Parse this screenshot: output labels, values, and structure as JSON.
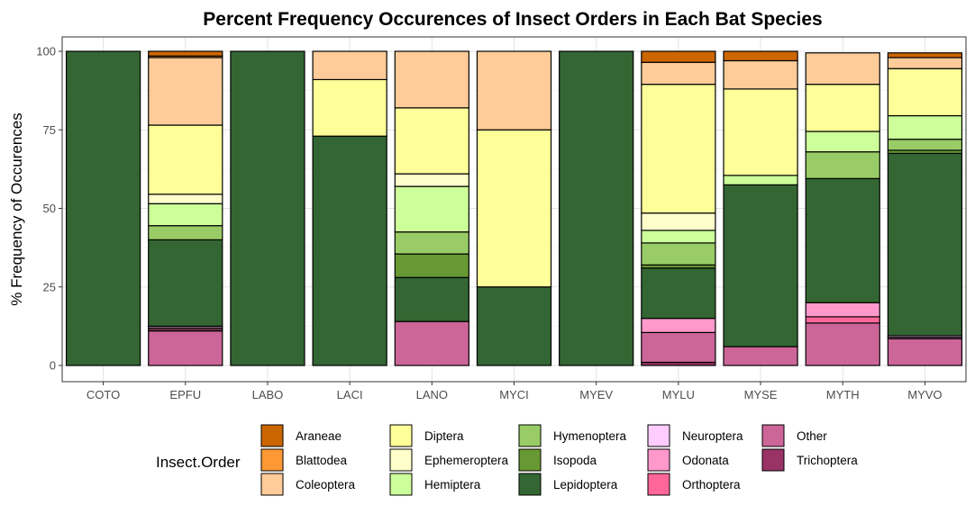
{
  "chart_data": {
    "type": "bar",
    "stacked": true,
    "title": "Percent Frequency Occurences of Insect Orders in Each Bat Species",
    "xlabel": "",
    "ylabel": "% Frequency of Occurences",
    "ylim": [
      0,
      100
    ],
    "yticks": [
      0,
      25,
      50,
      75,
      100
    ],
    "grid": true,
    "legend_position": "bottom",
    "legend_title": "Insect.Order",
    "categories": [
      "COTO",
      "EPFU",
      "LABO",
      "LACI",
      "LANO",
      "MYCI",
      "MYEV",
      "MYLU",
      "MYSE",
      "MYTH",
      "MYVO"
    ],
    "series": [
      {
        "name": "Trichoptera",
        "color": "#993366",
        "values": [
          0,
          0,
          0,
          0,
          0,
          0,
          0,
          1,
          0,
          0,
          0
        ]
      },
      {
        "name": "Other",
        "color": "#cc6699",
        "values": [
          0,
          11,
          0,
          0,
          14,
          0,
          0,
          9.5,
          6,
          13.5,
          8.5
        ]
      },
      {
        "name": "Orthoptera",
        "color": "#ff6699",
        "values": [
          0,
          0.5,
          0,
          0,
          0,
          0,
          0,
          0,
          0,
          2,
          0
        ]
      },
      {
        "name": "Odonata",
        "color": "#ff99cc",
        "values": [
          0,
          0.5,
          0,
          0,
          0,
          0,
          0,
          4.5,
          0,
          4.5,
          0.5
        ]
      },
      {
        "name": "Neuroptera",
        "color": "#ffccff",
        "values": [
          0,
          0.5,
          0,
          0,
          0,
          0,
          0,
          0,
          0,
          0,
          0.5
        ]
      },
      {
        "name": "Lepidoptera",
        "color": "#336633",
        "values": [
          100,
          27.5,
          100,
          73,
          14,
          25,
          100,
          16,
          51.5,
          39.5,
          58
        ]
      },
      {
        "name": "Isopoda",
        "color": "#669933",
        "values": [
          0,
          0,
          0,
          0,
          7.5,
          0,
          0,
          1,
          0,
          0,
          1
        ]
      },
      {
        "name": "Hymenoptera",
        "color": "#99cc66",
        "values": [
          0,
          4.5,
          0,
          0,
          7,
          0,
          0,
          7,
          0,
          8.5,
          3.5
        ]
      },
      {
        "name": "Hemiptera",
        "color": "#ccff99",
        "values": [
          0,
          7,
          0,
          0,
          14.5,
          0,
          0,
          4,
          3,
          6.5,
          7.5
        ]
      },
      {
        "name": "Ephemeroptera",
        "color": "#ffffcc",
        "values": [
          0,
          3,
          0,
          0,
          4,
          0,
          0,
          5.5,
          0,
          0,
          0
        ]
      },
      {
        "name": "Diptera",
        "color": "#ffff99",
        "values": [
          0,
          22,
          0,
          18,
          21,
          50,
          0,
          41,
          27.5,
          15,
          15
        ]
      },
      {
        "name": "Coleoptera",
        "color": "#ffcc99",
        "values": [
          0,
          21.5,
          0,
          9,
          18,
          25,
          0,
          7,
          9,
          10,
          3.5
        ]
      },
      {
        "name": "Blattodea",
        "color": "#ff9933",
        "values": [
          0,
          0.5,
          0,
          0,
          0,
          0,
          0,
          0,
          0,
          0,
          0
        ]
      },
      {
        "name": "Araneae",
        "color": "#cc6600",
        "values": [
          0,
          1.5,
          0,
          0,
          0,
          0,
          0,
          3.5,
          3,
          0,
          1.5
        ]
      }
    ],
    "legend_order": [
      "Araneae",
      "Blattodea",
      "Coleoptera",
      "Diptera",
      "Ephemeroptera",
      "Hemiptera",
      "Hymenoptera",
      "Isopoda",
      "Lepidoptera",
      "Neuroptera",
      "Odonata",
      "Orthoptera",
      "Other",
      "Trichoptera"
    ]
  }
}
